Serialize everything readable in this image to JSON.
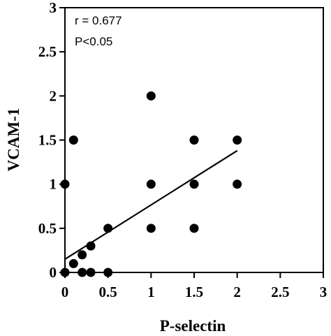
{
  "chart_data": {
    "type": "scatter",
    "xlabel": "P-selectin",
    "ylabel": "VCAM-1",
    "xlim": [
      0,
      3
    ],
    "ylim": [
      0,
      3
    ],
    "x_ticks": [
      "0",
      "0.5",
      "1",
      "1.5",
      "2",
      "2.5",
      "3"
    ],
    "y_ticks": [
      "0",
      "0.5",
      "1",
      "1.5",
      "2",
      "2.5",
      "3"
    ],
    "grid": false,
    "annotations": {
      "r": "r = 0.677",
      "p": "P<0.05"
    },
    "points": [
      {
        "x": 0,
        "y": 1
      },
      {
        "x": 0,
        "y": 0
      },
      {
        "x": 0.1,
        "y": 1.5
      },
      {
        "x": 0.1,
        "y": 0.1
      },
      {
        "x": 0.2,
        "y": 0.2
      },
      {
        "x": 0.2,
        "y": 0
      },
      {
        "x": 0.3,
        "y": 0.3
      },
      {
        "x": 0.3,
        "y": 0
      },
      {
        "x": 0.5,
        "y": 0.5
      },
      {
        "x": 0.5,
        "y": 0
      },
      {
        "x": 1,
        "y": 2
      },
      {
        "x": 1,
        "y": 1
      },
      {
        "x": 1,
        "y": 0.5
      },
      {
        "x": 1.5,
        "y": 1.5
      },
      {
        "x": 1.5,
        "y": 1
      },
      {
        "x": 1.5,
        "y": 0.5
      },
      {
        "x": 2,
        "y": 1.5
      },
      {
        "x": 2,
        "y": 1
      }
    ],
    "fit_line": {
      "x": [
        0,
        2
      ],
      "y": [
        0.15,
        1.38
      ]
    }
  }
}
